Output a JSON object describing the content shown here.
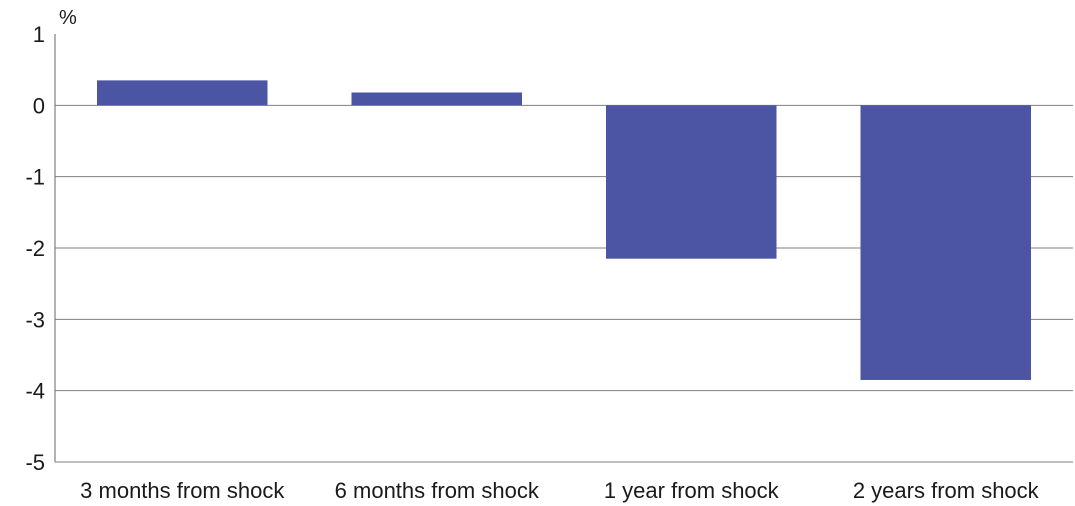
{
  "chart_data": {
    "type": "bar",
    "unit_label": "%",
    "categories": [
      "3 months from shock",
      "6 months from shock",
      "1 year from shock",
      "2 years from shock"
    ],
    "values": [
      0.35,
      0.18,
      -2.15,
      -3.85
    ],
    "ylim": [
      -5,
      1
    ],
    "yticks": [
      1,
      0,
      -1,
      -2,
      -3,
      -4,
      -5
    ],
    "grid": true,
    "bar_color": "#4b55a3",
    "gridline_color": "#7f7f7f"
  }
}
